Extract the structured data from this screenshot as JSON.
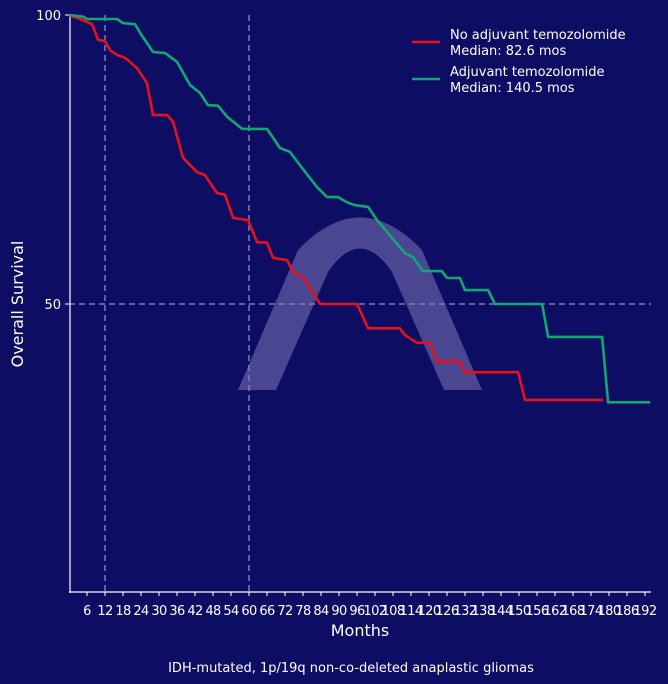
{
  "chart_data": {
    "type": "line",
    "subtype": "kaplan-meier step",
    "title": "",
    "caption": "IDH-mutated, 1p/19q non-co-deleted anaplastic gliomas",
    "xlabel": "Months",
    "ylabel": "Overall Survival",
    "xlim": [
      0,
      194
    ],
    "ylim": [
      0,
      100
    ],
    "x_ticks": [
      6,
      12,
      18,
      24,
      30,
      36,
      42,
      48,
      54,
      60,
      66,
      72,
      78,
      84,
      90,
      96,
      102,
      108,
      114,
      120,
      126,
      132,
      138,
      144,
      150,
      156,
      162,
      168,
      174,
      180,
      186,
      192
    ],
    "y_ticks": [
      50,
      100
    ],
    "reference_lines": {
      "vertical": [
        12,
        60
      ],
      "horizontal": [
        50
      ]
    },
    "grid": false,
    "legend_position": "top-right",
    "background_color": "#0d0d63",
    "series": [
      {
        "name": "No adjuvant temozolomide",
        "legend_sub": "Median: 82.6 mos",
        "color": "#e8101c",
        "points": [
          [
            0,
            100
          ],
          [
            3.7,
            99.3
          ],
          [
            7.7,
            98.4
          ],
          [
            9.7,
            95.7
          ],
          [
            12,
            95.5
          ],
          [
            13.7,
            93.9
          ],
          [
            16,
            93.1
          ],
          [
            18.7,
            92.6
          ],
          [
            22.7,
            90.8
          ],
          [
            26,
            88.2
          ],
          [
            28,
            82.7
          ],
          [
            32.7,
            82.7
          ],
          [
            34.7,
            81.5
          ],
          [
            38,
            75.3
          ],
          [
            42.7,
            72.8
          ],
          [
            45.3,
            72.3
          ],
          [
            49.3,
            69.2
          ],
          [
            52,
            68.9
          ],
          [
            54.7,
            64.9
          ],
          [
            59.7,
            64.5
          ],
          [
            62.7,
            60.7
          ],
          [
            66,
            60.6
          ],
          [
            68,
            58
          ],
          [
            72.7,
            57.6
          ],
          [
            74.7,
            55.5
          ],
          [
            78,
            54.7
          ],
          [
            83.7,
            50
          ],
          [
            96,
            50
          ],
          [
            99.7,
            45.8
          ],
          [
            110.3,
            45.8
          ],
          [
            112,
            44.6
          ],
          [
            116,
            43.3
          ],
          [
            120.3,
            43.3
          ],
          [
            122.7,
            40
          ],
          [
            130.3,
            40
          ],
          [
            132,
            38.2
          ],
          [
            149.7,
            38.2
          ],
          [
            152,
            33.4
          ],
          [
            178,
            33.4
          ]
        ]
      },
      {
        "name": "Adjuvant temozolomide",
        "legend_sub": "Median: 140.5 mos",
        "color": "#10a870",
        "points": [
          [
            0,
            100
          ],
          [
            4.7,
            99.7
          ],
          [
            6,
            99.3
          ],
          [
            16,
            99.3
          ],
          [
            18,
            98.6
          ],
          [
            22,
            98.4
          ],
          [
            23.7,
            96.9
          ],
          [
            28,
            93.6
          ],
          [
            32,
            93.4
          ],
          [
            36,
            91.9
          ],
          [
            40.3,
            87.9
          ],
          [
            43.7,
            86.5
          ],
          [
            46.3,
            84.4
          ],
          [
            49.7,
            84.3
          ],
          [
            52.7,
            82.4
          ],
          [
            57.7,
            80.3
          ],
          [
            66,
            80.3
          ],
          [
            70.3,
            77
          ],
          [
            73.7,
            76.3
          ],
          [
            77,
            74
          ],
          [
            82.7,
            70.2
          ],
          [
            86,
            68.5
          ],
          [
            89.7,
            68.5
          ],
          [
            92.7,
            67.6
          ],
          [
            95.3,
            67.1
          ],
          [
            99.7,
            66.8
          ],
          [
            102.7,
            64.5
          ],
          [
            112,
            58.8
          ],
          [
            114.7,
            58.1
          ],
          [
            118,
            55.7
          ],
          [
            124.3,
            55.7
          ],
          [
            126,
            54.5
          ],
          [
            130.3,
            54.5
          ],
          [
            132,
            52.4
          ],
          [
            139.7,
            52.4
          ],
          [
            142,
            50
          ],
          [
            157.7,
            50
          ],
          [
            159.7,
            44.3
          ],
          [
            177.7,
            44.3
          ],
          [
            179.7,
            33
          ],
          [
            193.7,
            33
          ]
        ]
      }
    ]
  }
}
